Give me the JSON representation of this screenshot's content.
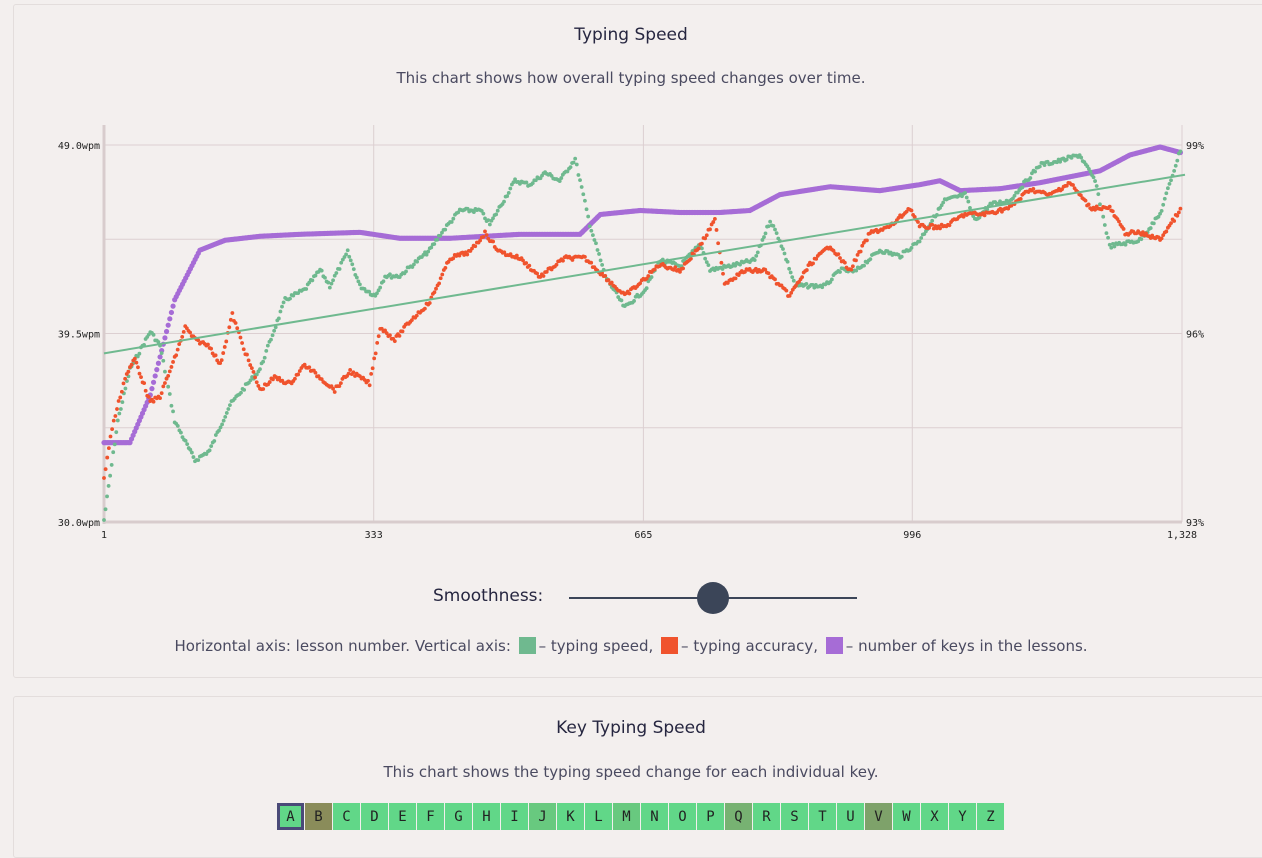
{
  "speed_section": {
    "title": "Typing Speed",
    "subtitle": "This chart shows how overall typing speed changes over time.",
    "smoothness_label": "Smoothness:",
    "smoothness_value": 0.5,
    "legend": {
      "prefix": "Horizontal axis: lesson number. Vertical axis:",
      "speed": "– typing speed,",
      "accuracy": "– typing accuracy,",
      "keys": "– number of keys in the lessons."
    }
  },
  "chart_data": {
    "type": "scatter",
    "title": "Typing Speed",
    "xlabel": "lesson number",
    "x_ticks": [
      "1",
      "333",
      "665",
      "996",
      "1,328"
    ],
    "x_tick_values": [
      1,
      333,
      665,
      996,
      1328
    ],
    "xlim": [
      1,
      1328
    ],
    "y_left_ticks": [
      "49.0wpm",
      "39.5wpm",
      "30.0wpm"
    ],
    "y_left_tick_values": [
      49.0,
      39.5,
      30.0
    ],
    "ylim_left": [
      30,
      49
    ],
    "y_right_ticks": [
      "99%",
      "96%",
      "93%"
    ],
    "y_right_tick_values": [
      99,
      96,
      93
    ],
    "ylim_right": [
      93,
      99
    ],
    "grid": true,
    "colors": {
      "speed": "#6fb98f",
      "accuracy": "#f0532d",
      "keys": "#a66cd6",
      "trend": "#6fb98f"
    },
    "series": [
      {
        "name": "typing speed",
        "axis": "left",
        "points": [
          [
            1,
            30.1
          ],
          [
            18,
            35.1
          ],
          [
            33,
            37.7
          ],
          [
            58,
            39.6
          ],
          [
            70,
            38.9
          ],
          [
            88,
            35.1
          ],
          [
            113,
            33.1
          ],
          [
            131,
            33.6
          ],
          [
            156,
            35.9
          ],
          [
            193,
            37.7
          ],
          [
            224,
            41.2
          ],
          [
            248,
            41.7
          ],
          [
            267,
            42.7
          ],
          [
            279,
            41.9
          ],
          [
            301,
            43.6
          ],
          [
            316,
            41.9
          ],
          [
            335,
            41.4
          ],
          [
            347,
            42.4
          ],
          [
            365,
            42.4
          ],
          [
            402,
            43.7
          ],
          [
            415,
            44.5
          ],
          [
            439,
            45.7
          ],
          [
            464,
            45.7
          ],
          [
            476,
            45.0
          ],
          [
            507,
            47.2
          ],
          [
            525,
            47.0
          ],
          [
            544,
            47.6
          ],
          [
            562,
            47.2
          ],
          [
            581,
            48.3
          ],
          [
            599,
            45.0
          ],
          [
            618,
            42.4
          ],
          [
            642,
            40.8
          ],
          [
            667,
            41.7
          ],
          [
            685,
            43.2
          ],
          [
            710,
            42.9
          ],
          [
            735,
            44.0
          ],
          [
            747,
            42.7
          ],
          [
            772,
            42.9
          ],
          [
            802,
            43.2
          ],
          [
            821,
            45.2
          ],
          [
            833,
            44.2
          ],
          [
            852,
            41.9
          ],
          [
            889,
            41.9
          ],
          [
            907,
            42.7
          ],
          [
            925,
            42.6
          ],
          [
            956,
            43.7
          ],
          [
            981,
            43.4
          ],
          [
            1005,
            44.2
          ],
          [
            1036,
            46.2
          ],
          [
            1061,
            46.5
          ],
          [
            1073,
            45.2
          ],
          [
            1092,
            46.0
          ],
          [
            1116,
            46.2
          ],
          [
            1153,
            48.0
          ],
          [
            1178,
            48.2
          ],
          [
            1202,
            48.5
          ],
          [
            1221,
            47.2
          ],
          [
            1239,
            43.9
          ],
          [
            1276,
            44.2
          ],
          [
            1301,
            45.5
          ],
          [
            1328,
            49.0
          ]
        ]
      },
      {
        "name": "typing accuracy",
        "axis": "right",
        "points": [
          [
            1,
            93.7
          ],
          [
            11,
            94.5
          ],
          [
            27,
            95.3
          ],
          [
            39,
            95.6
          ],
          [
            58,
            94.9
          ],
          [
            70,
            95.0
          ],
          [
            88,
            95.6
          ],
          [
            101,
            96.1
          ],
          [
            113,
            95.9
          ],
          [
            131,
            95.8
          ],
          [
            144,
            95.5
          ],
          [
            159,
            96.3
          ],
          [
            175,
            95.7
          ],
          [
            193,
            95.1
          ],
          [
            211,
            95.3
          ],
          [
            230,
            95.2
          ],
          [
            248,
            95.5
          ],
          [
            267,
            95.3
          ],
          [
            285,
            95.1
          ],
          [
            304,
            95.4
          ],
          [
            328,
            95.2
          ],
          [
            341,
            96.1
          ],
          [
            359,
            95.9
          ],
          [
            378,
            96.2
          ],
          [
            402,
            96.5
          ],
          [
            427,
            97.2
          ],
          [
            452,
            97.3
          ],
          [
            470,
            97.6
          ],
          [
            488,
            97.3
          ],
          [
            513,
            97.2
          ],
          [
            538,
            96.9
          ],
          [
            568,
            97.2
          ],
          [
            593,
            97.2
          ],
          [
            618,
            96.9
          ],
          [
            642,
            96.6
          ],
          [
            661,
            96.8
          ],
          [
            685,
            97.1
          ],
          [
            710,
            97.0
          ],
          [
            735,
            97.4
          ],
          [
            753,
            97.8
          ],
          [
            765,
            96.8
          ],
          [
            790,
            97.0
          ],
          [
            815,
            97.0
          ],
          [
            845,
            96.6
          ],
          [
            870,
            97.1
          ],
          [
            895,
            97.4
          ],
          [
            919,
            97.0
          ],
          [
            944,
            97.6
          ],
          [
            969,
            97.7
          ],
          [
            993,
            98.0
          ],
          [
            1005,
            97.7
          ],
          [
            1036,
            97.7
          ],
          [
            1061,
            97.9
          ],
          [
            1085,
            97.9
          ],
          [
            1116,
            98.0
          ],
          [
            1141,
            98.3
          ],
          [
            1165,
            98.2
          ],
          [
            1190,
            98.4
          ],
          [
            1215,
            98.0
          ],
          [
            1239,
            98.0
          ],
          [
            1258,
            97.6
          ],
          [
            1276,
            97.6
          ],
          [
            1301,
            97.5
          ],
          [
            1328,
            98.0
          ]
        ]
      },
      {
        "name": "number of keys (scaled to left axis)",
        "axis": "left",
        "points": [
          [
            1,
            34.0
          ],
          [
            33,
            34.0
          ],
          [
            58,
            36.4
          ],
          [
            88,
            41.2
          ],
          [
            119,
            43.7
          ],
          [
            150,
            44.2
          ],
          [
            193,
            44.4
          ],
          [
            242,
            44.5
          ],
          [
            316,
            44.6
          ],
          [
            365,
            44.3
          ],
          [
            427,
            44.3
          ],
          [
            513,
            44.5
          ],
          [
            587,
            44.5
          ],
          [
            612,
            45.5
          ],
          [
            661,
            45.7
          ],
          [
            710,
            45.6
          ],
          [
            759,
            45.6
          ],
          [
            796,
            45.7
          ],
          [
            833,
            46.5
          ],
          [
            895,
            46.9
          ],
          [
            956,
            46.7
          ],
          [
            1005,
            47.0
          ],
          [
            1030,
            47.2
          ],
          [
            1055,
            46.7
          ],
          [
            1104,
            46.8
          ],
          [
            1153,
            47.1
          ],
          [
            1190,
            47.4
          ],
          [
            1227,
            47.7
          ],
          [
            1264,
            48.5
          ],
          [
            1301,
            48.9
          ],
          [
            1328,
            48.6
          ]
        ]
      }
    ],
    "trend_line": {
      "series": "typing speed",
      "from": [
        1,
        38.5
      ],
      "to": [
        1328,
        47.5
      ]
    }
  },
  "key_section": {
    "title": "Key Typing Speed",
    "subtitle": "This chart shows the typing speed change for each individual key.",
    "selected": "A",
    "keys": [
      {
        "k": "A",
        "c": "#61d788"
      },
      {
        "k": "B",
        "c": "#8a8c5a"
      },
      {
        "k": "C",
        "c": "#61d788"
      },
      {
        "k": "D",
        "c": "#61d788"
      },
      {
        "k": "E",
        "c": "#61d788"
      },
      {
        "k": "F",
        "c": "#61d788"
      },
      {
        "k": "G",
        "c": "#61d788"
      },
      {
        "k": "H",
        "c": "#61d788"
      },
      {
        "k": "I",
        "c": "#61d788"
      },
      {
        "k": "J",
        "c": "#68c97f"
      },
      {
        "k": "K",
        "c": "#61d788"
      },
      {
        "k": "L",
        "c": "#61d788"
      },
      {
        "k": "M",
        "c": "#68c97f"
      },
      {
        "k": "N",
        "c": "#61d788"
      },
      {
        "k": "O",
        "c": "#61d788"
      },
      {
        "k": "P",
        "c": "#61d788"
      },
      {
        "k": "Q",
        "c": "#77b272"
      },
      {
        "k": "R",
        "c": "#61d788"
      },
      {
        "k": "S",
        "c": "#61d788"
      },
      {
        "k": "T",
        "c": "#61d788"
      },
      {
        "k": "U",
        "c": "#61d788"
      },
      {
        "k": "V",
        "c": "#7ea26a"
      },
      {
        "k": "W",
        "c": "#61d788"
      },
      {
        "k": "X",
        "c": "#61d788"
      },
      {
        "k": "Y",
        "c": "#61d788"
      },
      {
        "k": "Z",
        "c": "#61d788"
      }
    ]
  }
}
